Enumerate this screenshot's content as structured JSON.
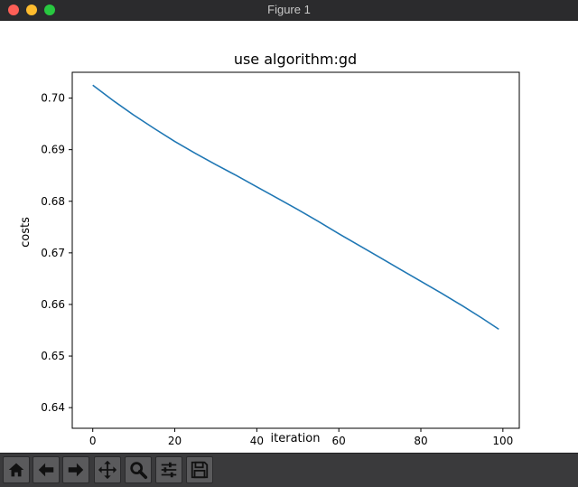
{
  "window": {
    "title": "Figure 1"
  },
  "toolbar": {
    "icons": [
      "home-icon",
      "back-arrow-icon",
      "forward-arrow-icon",
      "pan-icon",
      "zoom-icon",
      "configure-subplots-icon",
      "save-icon"
    ]
  },
  "chart_data": {
    "type": "line",
    "title": "use algorithm:gd",
    "xlabel": "iteration",
    "ylabel": "costs",
    "xlim": [
      -5,
      104
    ],
    "ylim": [
      0.636,
      0.705
    ],
    "xticks": [
      0,
      20,
      40,
      60,
      80,
      100
    ],
    "xtick_labels": [
      "0",
      "20",
      "40",
      "60",
      "80",
      "100"
    ],
    "yticks": [
      0.64,
      0.65,
      0.66,
      0.67,
      0.68,
      0.69,
      0.7
    ],
    "ytick_labels": [
      "0.64",
      "0.65",
      "0.66",
      "0.67",
      "0.68",
      "0.69",
      "0.70"
    ],
    "grid": false,
    "line_color": "#1f77b4",
    "x": [
      0,
      5,
      10,
      15,
      20,
      25,
      30,
      35,
      40,
      45,
      50,
      55,
      60,
      65,
      70,
      75,
      80,
      85,
      90,
      95,
      99
    ],
    "y": [
      0.7025,
      0.6995,
      0.6967,
      0.6941,
      0.6916,
      0.6893,
      0.6871,
      0.685,
      0.6828,
      0.6806,
      0.6784,
      0.6761,
      0.6737,
      0.6714,
      0.6691,
      0.6668,
      0.6645,
      0.6622,
      0.6598,
      0.6573,
      0.6552
    ]
  }
}
